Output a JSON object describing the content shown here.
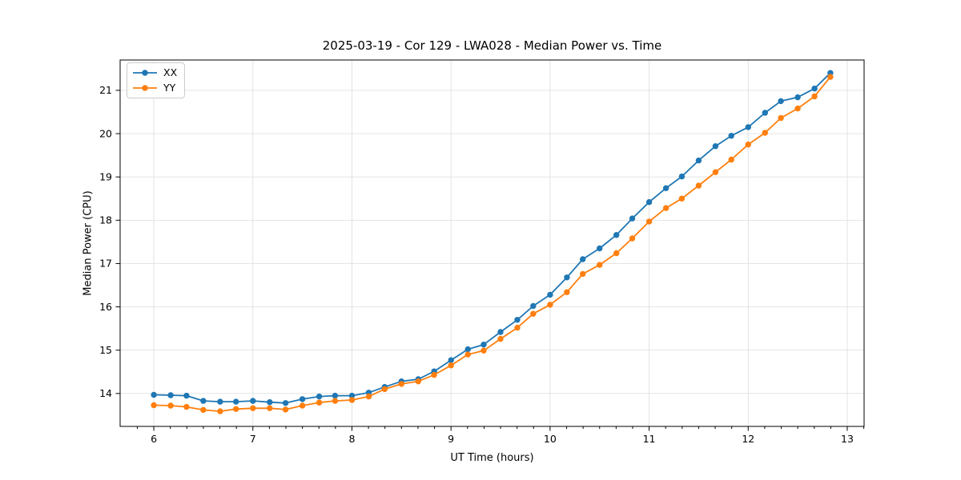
{
  "chart_data": {
    "type": "line",
    "title": "2025-03-19 - Cor 129 - LWA028 - Median Power vs. Time",
    "xlabel": "UT Time (hours)",
    "ylabel": "Median Power (CPU)",
    "xlim": [
      5.66,
      13.17
    ],
    "ylim": [
      13.24,
      21.7
    ],
    "x_ticks": [
      6,
      7,
      8,
      9,
      10,
      11,
      12,
      13
    ],
    "y_ticks": [
      14,
      15,
      16,
      17,
      18,
      19,
      20,
      21
    ],
    "x_minor_tick_step": 0.16667,
    "grid": true,
    "grid_color": "#e0e0e0",
    "legend_position": "upper-left",
    "x": [
      6.0,
      6.17,
      6.33,
      6.5,
      6.67,
      6.83,
      7.0,
      7.17,
      7.33,
      7.5,
      7.67,
      7.83,
      8.0,
      8.17,
      8.33,
      8.5,
      8.67,
      8.83,
      9.0,
      9.17,
      9.33,
      9.5,
      9.67,
      9.83,
      10.0,
      10.17,
      10.33,
      10.5,
      10.67,
      10.83,
      11.0,
      11.17,
      11.33,
      11.5,
      11.67,
      11.83,
      12.0,
      12.17,
      12.33,
      12.5,
      12.67,
      12.83
    ],
    "series": [
      {
        "name": "XX",
        "color": "#1f77b4",
        "values": [
          13.97,
          13.96,
          13.95,
          13.83,
          13.81,
          13.81,
          13.83,
          13.8,
          13.78,
          13.87,
          13.93,
          13.95,
          13.95,
          14.02,
          14.15,
          14.28,
          14.33,
          14.51,
          14.77,
          15.02,
          15.13,
          15.42,
          15.7,
          16.02,
          16.28,
          16.68,
          17.1,
          17.35,
          17.66,
          18.04,
          18.42,
          18.74,
          19.01,
          19.38,
          19.71,
          19.95,
          20.15,
          20.48,
          20.75,
          20.84,
          21.04,
          21.4
        ]
      },
      {
        "name": "YY",
        "color": "#ff7f0e",
        "values": [
          13.73,
          13.72,
          13.69,
          13.62,
          13.59,
          13.64,
          13.66,
          13.66,
          13.63,
          13.72,
          13.79,
          13.83,
          13.85,
          13.93,
          14.1,
          14.22,
          14.28,
          14.43,
          14.65,
          14.9,
          14.99,
          15.26,
          15.52,
          15.84,
          16.05,
          16.34,
          16.76,
          16.97,
          17.24,
          17.58,
          17.97,
          18.28,
          18.5,
          18.8,
          19.11,
          19.4,
          19.75,
          20.02,
          20.36,
          20.58,
          20.86,
          21.31
        ]
      }
    ]
  }
}
